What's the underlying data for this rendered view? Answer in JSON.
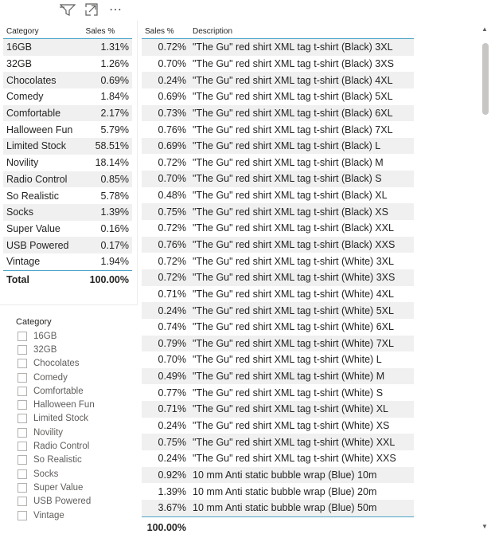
{
  "toolbar": {
    "icons": [
      "filter-icon",
      "focus-mode-icon",
      "more-options-icon"
    ],
    "more_glyph": "⋯"
  },
  "left_table": {
    "headers": {
      "category": "Category",
      "sales": "Sales %"
    },
    "rows": [
      {
        "category": "16GB",
        "sales": "1.31%"
      },
      {
        "category": "32GB",
        "sales": "1.26%"
      },
      {
        "category": "Chocolates",
        "sales": "0.69%"
      },
      {
        "category": "Comedy",
        "sales": "1.84%"
      },
      {
        "category": "Comfortable",
        "sales": "2.17%"
      },
      {
        "category": "Halloween Fun",
        "sales": "5.79%"
      },
      {
        "category": "Limited Stock",
        "sales": "58.51%"
      },
      {
        "category": "Novility",
        "sales": "18.14%"
      },
      {
        "category": "Radio Control",
        "sales": "0.85%"
      },
      {
        "category": "So Realistic",
        "sales": "5.78%"
      },
      {
        "category": "Socks",
        "sales": "1.39%"
      },
      {
        "category": "Super Value",
        "sales": "0.16%"
      },
      {
        "category": "USB Powered",
        "sales": "0.17%"
      },
      {
        "category": "Vintage",
        "sales": "1.94%"
      }
    ],
    "total": {
      "label": "Total",
      "sales": "100.00%"
    }
  },
  "slicer": {
    "title": "Category",
    "items": [
      "16GB",
      "32GB",
      "Chocolates",
      "Comedy",
      "Comfortable",
      "Halloween Fun",
      "Limited Stock",
      "Novility",
      "Radio Control",
      "So Realistic",
      "Socks",
      "Super Value",
      "USB Powered",
      "Vintage"
    ]
  },
  "right_table": {
    "headers": {
      "sales": "Sales %",
      "description": "Description"
    },
    "rows": [
      {
        "sales": "0.72%",
        "description": "\"The Gu\" red shirt XML tag t-shirt (Black) 3XL"
      },
      {
        "sales": "0.70%",
        "description": "\"The Gu\" red shirt XML tag t-shirt (Black) 3XS"
      },
      {
        "sales": "0.24%",
        "description": "\"The Gu\" red shirt XML tag t-shirt (Black) 4XL"
      },
      {
        "sales": "0.69%",
        "description": "\"The Gu\" red shirt XML tag t-shirt (Black) 5XL"
      },
      {
        "sales": "0.73%",
        "description": "\"The Gu\" red shirt XML tag t-shirt (Black) 6XL"
      },
      {
        "sales": "0.76%",
        "description": "\"The Gu\" red shirt XML tag t-shirt (Black) 7XL"
      },
      {
        "sales": "0.69%",
        "description": "\"The Gu\" red shirt XML tag t-shirt (Black) L"
      },
      {
        "sales": "0.72%",
        "description": "\"The Gu\" red shirt XML tag t-shirt (Black) M"
      },
      {
        "sales": "0.70%",
        "description": "\"The Gu\" red shirt XML tag t-shirt (Black) S"
      },
      {
        "sales": "0.48%",
        "description": "\"The Gu\" red shirt XML tag t-shirt (Black) XL"
      },
      {
        "sales": "0.75%",
        "description": "\"The Gu\" red shirt XML tag t-shirt (Black) XS"
      },
      {
        "sales": "0.72%",
        "description": "\"The Gu\" red shirt XML tag t-shirt (Black) XXL"
      },
      {
        "sales": "0.76%",
        "description": "\"The Gu\" red shirt XML tag t-shirt (Black) XXS"
      },
      {
        "sales": "0.72%",
        "description": "\"The Gu\" red shirt XML tag t-shirt (White) 3XL"
      },
      {
        "sales": "0.72%",
        "description": "\"The Gu\" red shirt XML tag t-shirt (White) 3XS"
      },
      {
        "sales": "0.71%",
        "description": "\"The Gu\" red shirt XML tag t-shirt (White) 4XL"
      },
      {
        "sales": "0.24%",
        "description": "\"The Gu\" red shirt XML tag t-shirt (White) 5XL"
      },
      {
        "sales": "0.74%",
        "description": "\"The Gu\" red shirt XML tag t-shirt (White) 6XL"
      },
      {
        "sales": "0.79%",
        "description": "\"The Gu\" red shirt XML tag t-shirt (White) 7XL"
      },
      {
        "sales": "0.70%",
        "description": "\"The Gu\" red shirt XML tag t-shirt (White) L"
      },
      {
        "sales": "0.49%",
        "description": "\"The Gu\" red shirt XML tag t-shirt (White) M"
      },
      {
        "sales": "0.77%",
        "description": "\"The Gu\" red shirt XML tag t-shirt (White) S"
      },
      {
        "sales": "0.71%",
        "description": "\"The Gu\" red shirt XML tag t-shirt (White) XL"
      },
      {
        "sales": "0.24%",
        "description": "\"The Gu\" red shirt XML tag t-shirt (White) XS"
      },
      {
        "sales": "0.75%",
        "description": "\"The Gu\" red shirt XML tag t-shirt (White) XXL"
      },
      {
        "sales": "0.24%",
        "description": "\"The Gu\" red shirt XML tag t-shirt (White) XXS"
      },
      {
        "sales": "0.92%",
        "description": "10 mm Anti static bubble wrap (Blue) 10m"
      },
      {
        "sales": "1.39%",
        "description": "10 mm Anti static bubble wrap (Blue) 20m"
      },
      {
        "sales": "3.67%",
        "description": "10 mm Anti static bubble wrap (Blue) 50m"
      }
    ],
    "total": {
      "sales": "100.00%",
      "description": ""
    }
  },
  "scrollbar": {
    "up_glyph": "▲",
    "down_glyph": "▼"
  },
  "colors": {
    "header_rule": "#4aa3c8",
    "alt_row": "#f0f0f0",
    "highlight_cell": "#e2e2e2"
  }
}
